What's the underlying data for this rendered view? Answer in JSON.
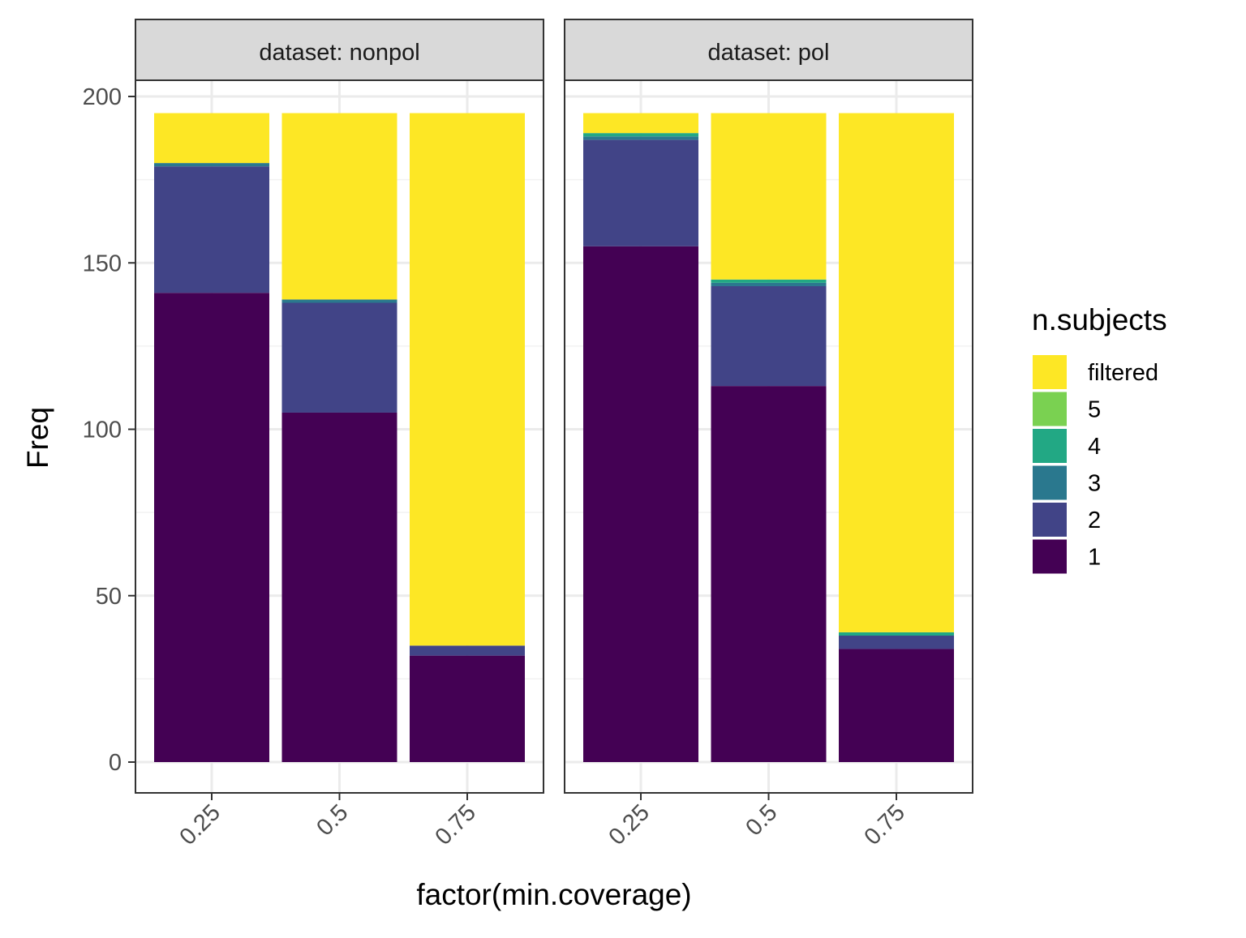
{
  "chart_data": {
    "type": "bar",
    "stacked": true,
    "title": "",
    "xlabel": "factor(min.coverage)",
    "ylabel": "Freq",
    "ylim": [
      0,
      200
    ],
    "yticks": [
      0,
      50,
      100,
      150,
      200
    ],
    "grid": true,
    "legend_position": "right",
    "categories": [
      "0.25",
      "0.5",
      "0.75"
    ],
    "legend": {
      "title": "n.subjects",
      "entries": [
        "filtered",
        "5",
        "4",
        "3",
        "2",
        "1"
      ]
    },
    "series_colors": {
      "1": "#440154",
      "2": "#414487",
      "3": "#2A788E",
      "4": "#22A884",
      "5": "#7AD151",
      "filtered": "#FDE725"
    },
    "stack_order": [
      "1",
      "2",
      "3",
      "4",
      "5",
      "filtered"
    ],
    "panels": [
      {
        "strip_label": "dataset: nonpol",
        "series": [
          {
            "name": "1",
            "values": [
              141,
              105,
              32
            ]
          },
          {
            "name": "2",
            "values": [
              38,
              33,
              3
            ]
          },
          {
            "name": "3",
            "values": [
              1,
              1,
              0
            ]
          },
          {
            "name": "4",
            "values": [
              0,
              0,
              0
            ]
          },
          {
            "name": "5",
            "values": [
              0,
              0,
              0
            ]
          },
          {
            "name": "filtered",
            "values": [
              15,
              56,
              160
            ]
          }
        ]
      },
      {
        "strip_label": "dataset: pol",
        "series": [
          {
            "name": "1",
            "values": [
              155,
              113,
              34
            ]
          },
          {
            "name": "2",
            "values": [
              32,
              30,
              4
            ]
          },
          {
            "name": "3",
            "values": [
              1,
              1,
              0
            ]
          },
          {
            "name": "4",
            "values": [
              1,
              1,
              1
            ]
          },
          {
            "name": "5",
            "values": [
              0,
              0,
              0
            ]
          },
          {
            "name": "filtered",
            "values": [
              6,
              50,
              156
            ]
          }
        ]
      }
    ]
  }
}
